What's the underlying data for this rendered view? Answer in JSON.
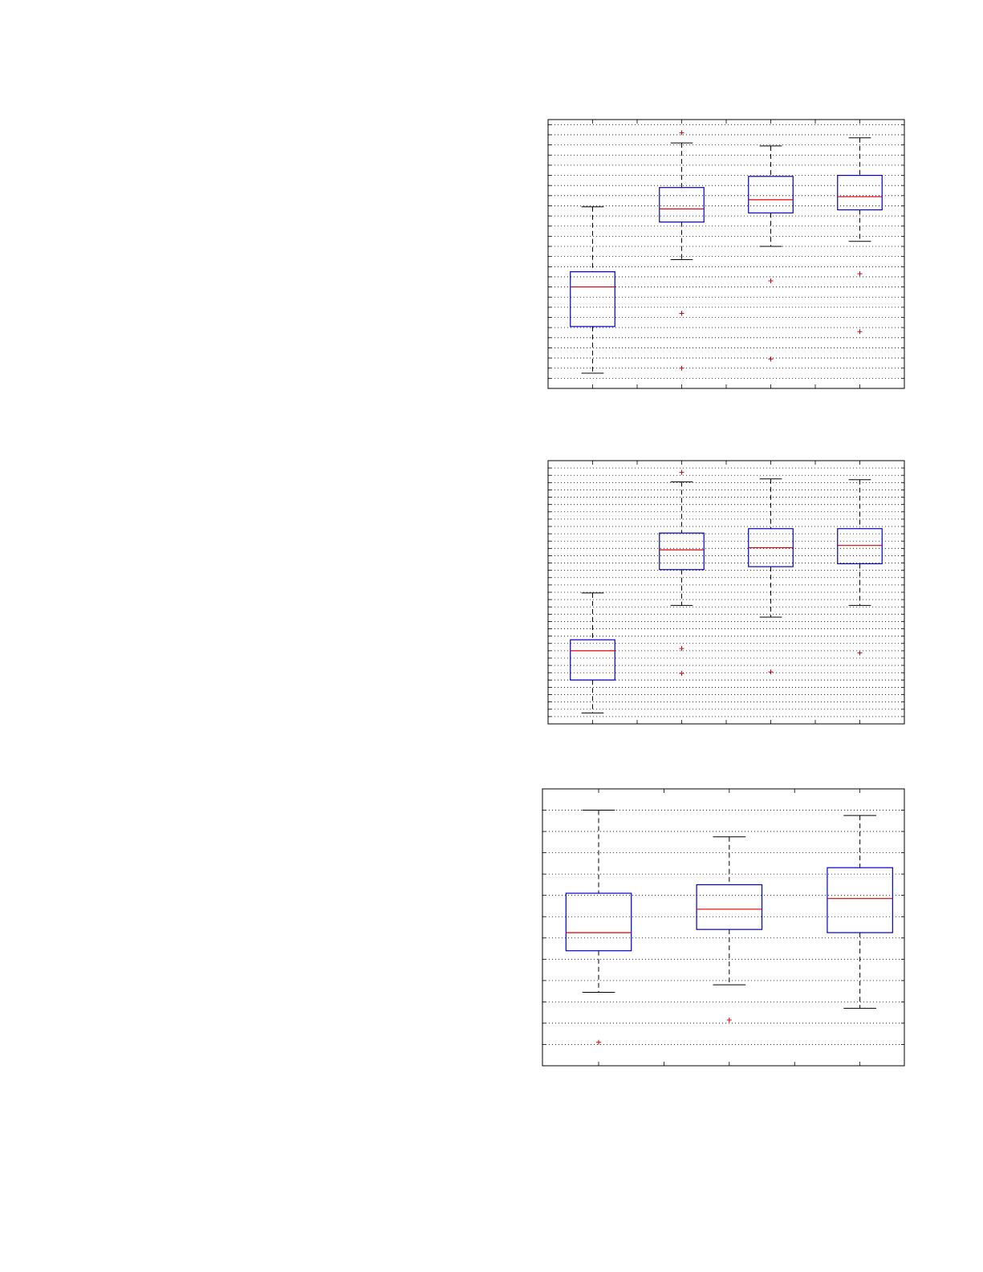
{
  "colors": {
    "box": "#0000cc",
    "median": "#dd0000",
    "outlier": "#dd0000",
    "whisker": "#000000",
    "grid": "#000000"
  },
  "chart_data": [
    {
      "type": "boxplot",
      "title": "",
      "xlabel": "",
      "ylabel": "",
      "grid": "y-dotted",
      "xlim": [
        0.5,
        4.5
      ],
      "ylim": [
        0,
        26.5
      ],
      "ygrid_step": 1,
      "xticks": [
        1,
        1.5,
        2,
        2.5,
        3,
        3.5,
        4
      ],
      "boxes": [
        {
          "x": 1,
          "whisker_low": 1.5,
          "q1": 6.1,
          "median": 10.0,
          "q3": 11.5,
          "whisker_high": 17.9,
          "outliers": []
        },
        {
          "x": 2,
          "whisker_low": 12.7,
          "q1": 16.4,
          "median": 17.7,
          "q3": 19.8,
          "whisker_high": 24.2,
          "outliers": [
            25.2,
            7.4,
            2.0
          ]
        },
        {
          "x": 3,
          "whisker_low": 14.0,
          "q1": 17.3,
          "median": 18.6,
          "q3": 20.9,
          "whisker_high": 23.9,
          "outliers": [
            10.6,
            2.9
          ]
        },
        {
          "x": 4,
          "whisker_low": 14.5,
          "q1": 17.6,
          "median": 18.9,
          "q3": 21.0,
          "whisker_high": 24.7,
          "outliers": [
            11.3,
            5.6
          ]
        }
      ]
    },
    {
      "type": "boxplot",
      "title": "",
      "xlabel": "",
      "ylabel": "",
      "grid": "y-dotted",
      "xlim": [
        0.5,
        4.5
      ],
      "ylim": [
        0,
        36
      ],
      "ygrid_step": 1,
      "xticks": [
        1,
        1.5,
        2,
        2.5,
        3,
        3.5,
        4
      ],
      "boxes": [
        {
          "x": 1,
          "whisker_low": 1.5,
          "q1": 6.0,
          "median": 10.0,
          "q3": 11.5,
          "whisker_high": 17.9,
          "outliers": []
        },
        {
          "x": 2,
          "whisker_low": 16.2,
          "q1": 21.1,
          "median": 23.8,
          "q3": 26.1,
          "whisker_high": 33.1,
          "outliers": [
            34.4,
            10.3,
            6.9
          ]
        },
        {
          "x": 3,
          "whisker_low": 14.6,
          "q1": 21.5,
          "median": 24.1,
          "q3": 26.7,
          "whisker_high": 33.5,
          "outliers": [
            7.1
          ]
        },
        {
          "x": 4,
          "whisker_low": 16.2,
          "q1": 21.9,
          "median": 24.4,
          "q3": 26.7,
          "whisker_high": 33.4,
          "outliers": [
            9.7
          ]
        }
      ]
    },
    {
      "type": "boxplot",
      "title": "",
      "xlabel": "",
      "ylabel": "",
      "grid": "y-dotted",
      "xlim": [
        0.57,
        3.34
      ],
      "ylim": [
        0,
        13
      ],
      "ygrid_step": 1,
      "xticks": [
        1,
        1.5,
        2,
        2.5,
        3
      ],
      "boxes": [
        {
          "x": 1,
          "whisker_low": 3.45,
          "q1": 5.4,
          "median": 6.25,
          "q3": 8.1,
          "whisker_high": 12.0,
          "outliers": [
            1.1
          ]
        },
        {
          "x": 2,
          "whisker_low": 3.8,
          "q1": 6.4,
          "median": 7.35,
          "q3": 8.5,
          "whisker_high": 10.75,
          "outliers": [
            2.15
          ]
        },
        {
          "x": 3,
          "whisker_low": 2.7,
          "q1": 6.25,
          "median": 7.85,
          "q3": 9.3,
          "whisker_high": 11.75,
          "outliers": []
        }
      ]
    }
  ]
}
